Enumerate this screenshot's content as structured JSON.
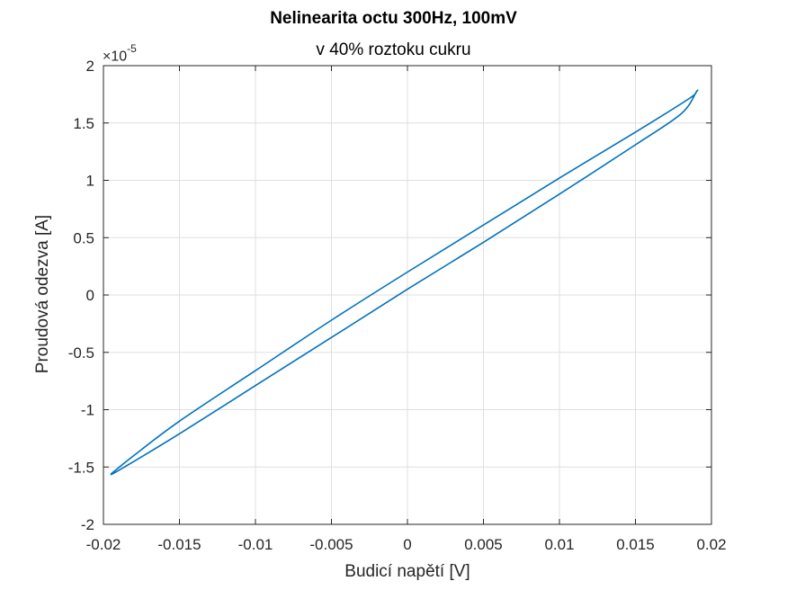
{
  "chart_data": {
    "type": "line",
    "title": "Nelinearita octu 300Hz, 100mV",
    "subtitle": "v 40% roztoku cukru",
    "xlabel": "Budicí napětí [V]",
    "ylabel": "Proudová odezva [A]",
    "xlim": [
      -0.02,
      0.02
    ],
    "ylim": [
      -2,
      2
    ],
    "y_exponent_base": "×10",
    "y_exponent_power": "-5",
    "x_ticks": [
      "-0.02",
      "-0.015",
      "-0.01",
      "-0.005",
      "0",
      "0.005",
      "0.01",
      "0.015",
      "0.02"
    ],
    "y_ticks": [
      "-2",
      "-1.5",
      "-1",
      "-0.5",
      "0",
      "0.5",
      "1",
      "1.5",
      "2"
    ],
    "grid": true,
    "series_color": "#0072BD",
    "series": [
      {
        "upper_branch": {
          "x": [
            -0.0195,
            -0.018,
            -0.015,
            -0.01,
            -0.005,
            0,
            0.005,
            0.01,
            0.015,
            0.0185,
            0.019
          ],
          "y": [
            -1.56,
            -1.4,
            -1.1,
            -0.66,
            -0.22,
            0.2,
            0.61,
            1.02,
            1.42,
            1.71,
            1.77
          ]
        },
        "lower_branch": {
          "x": [
            -0.0195,
            -0.019,
            -0.015,
            -0.01,
            -0.005,
            0,
            0.005,
            0.01,
            0.015,
            0.018,
            0.019
          ],
          "y": [
            -1.56,
            -1.53,
            -1.21,
            -0.79,
            -0.37,
            0.05,
            0.46,
            0.88,
            1.31,
            1.58,
            1.77
          ]
        }
      }
    ]
  }
}
